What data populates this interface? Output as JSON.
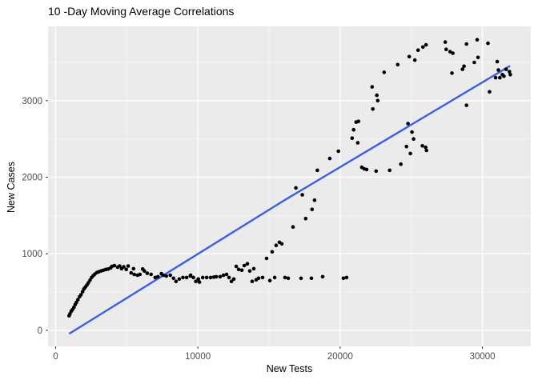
{
  "chart_data": {
    "type": "scatter",
    "title": "10 -Day Moving Average Correlations",
    "xlabel": "New Tests",
    "ylabel": "New Cases",
    "x_ticks": [
      0,
      10000,
      20000,
      30000
    ],
    "x_tick_labels": [
      "0",
      "10000",
      "20000",
      "30000"
    ],
    "y_ticks": [
      0,
      1000,
      2000,
      3000
    ],
    "y_tick_labels": [
      "0",
      "1000",
      "2000",
      "3000"
    ],
    "x_minor_ticks": [
      5000,
      15000,
      25000
    ],
    "y_minor_ticks": [
      500,
      1500,
      2500,
      3500
    ],
    "xlim": [
      -530,
      33400
    ],
    "ylim": [
      -210,
      3970
    ],
    "grid": true,
    "legend": false,
    "colors": {
      "panel_bg": "#EBEBEB",
      "grid_major": "#FFFFFF",
      "grid_minor": "#F5F5F5",
      "point": "#000000",
      "trend": "#3B5FE8",
      "tick_label": "#4D4D4D",
      "tick_mark": "#333333"
    },
    "trend_line": {
      "points": [
        [
          1000,
          -40
        ],
        [
          16000,
          1690
        ],
        [
          31900,
          3450
        ]
      ]
    },
    "points": [
      [
        950,
        190
      ],
      [
        1010,
        215
      ],
      [
        1100,
        250
      ],
      [
        1180,
        270
      ],
      [
        1290,
        300
      ],
      [
        1380,
        335
      ],
      [
        1460,
        365
      ],
      [
        1570,
        400
      ],
      [
        1690,
        440
      ],
      [
        1790,
        465
      ],
      [
        1900,
        505
      ],
      [
        1990,
        540
      ],
      [
        2100,
        565
      ],
      [
        2200,
        590
      ],
      [
        2300,
        620
      ],
      [
        2420,
        655
      ],
      [
        2530,
        690
      ],
      [
        2650,
        715
      ],
      [
        2760,
        735
      ],
      [
        2900,
        755
      ],
      [
        3030,
        765
      ],
      [
        3200,
        775
      ],
      [
        3370,
        785
      ],
      [
        3540,
        795
      ],
      [
        3700,
        800
      ],
      [
        3870,
        815
      ],
      [
        3960,
        835
      ],
      [
        4130,
        845
      ],
      [
        4360,
        825
      ],
      [
        4500,
        840
      ],
      [
        4640,
        805
      ],
      [
        4790,
        830
      ],
      [
        4970,
        795
      ],
      [
        5100,
        840
      ],
      [
        5310,
        750
      ],
      [
        5480,
        805
      ],
      [
        5530,
        730
      ],
      [
        5760,
        720
      ],
      [
        5930,
        730
      ],
      [
        6120,
        800
      ],
      [
        6240,
        775
      ],
      [
        6440,
        745
      ],
      [
        6710,
        730
      ],
      [
        7000,
        690
      ],
      [
        7190,
        700
      ],
      [
        7440,
        740
      ],
      [
        7560,
        720
      ],
      [
        7780,
        710
      ],
      [
        8060,
        720
      ],
      [
        8290,
        680
      ],
      [
        8460,
        640
      ],
      [
        8690,
        670
      ],
      [
        8950,
        690
      ],
      [
        9210,
        690
      ],
      [
        9470,
        710
      ],
      [
        9490,
        720
      ],
      [
        9690,
        690
      ],
      [
        9860,
        640
      ],
      [
        10030,
        670
      ],
      [
        10110,
        630
      ],
      [
        10340,
        690
      ],
      [
        10620,
        690
      ],
      [
        10900,
        690
      ],
      [
        11130,
        695
      ],
      [
        11300,
        700
      ],
      [
        11570,
        700
      ],
      [
        11800,
        720
      ],
      [
        12020,
        730
      ],
      [
        12190,
        690
      ],
      [
        12360,
        640
      ],
      [
        12530,
        670
      ],
      [
        12700,
        835
      ],
      [
        12870,
        795
      ],
      [
        13090,
        785
      ],
      [
        13260,
        845
      ],
      [
        13480,
        870
      ],
      [
        13650,
        775
      ],
      [
        13820,
        640
      ],
      [
        13930,
        805
      ],
      [
        14100,
        660
      ],
      [
        14270,
        680
      ],
      [
        14550,
        690
      ],
      [
        14830,
        940
      ],
      [
        15060,
        650
      ],
      [
        15220,
        1025
      ],
      [
        15400,
        690
      ],
      [
        15500,
        1110
      ],
      [
        15730,
        1150
      ],
      [
        15900,
        1130
      ],
      [
        16120,
        690
      ],
      [
        16350,
        680
      ],
      [
        16690,
        1350
      ],
      [
        16890,
        1860
      ],
      [
        17250,
        680
      ],
      [
        17340,
        1770
      ],
      [
        17580,
        1460
      ],
      [
        17980,
        680
      ],
      [
        18030,
        1580
      ],
      [
        18200,
        1700
      ],
      [
        18400,
        2090
      ],
      [
        18770,
        700
      ],
      [
        19270,
        2245
      ],
      [
        19880,
        2340
      ],
      [
        20230,
        680
      ],
      [
        20450,
        690
      ],
      [
        20840,
        2510
      ],
      [
        20950,
        2620
      ],
      [
        21120,
        2720
      ],
      [
        21240,
        2450
      ],
      [
        21290,
        2730
      ],
      [
        21520,
        2130
      ],
      [
        21690,
        2110
      ],
      [
        21860,
        2100
      ],
      [
        22250,
        3180
      ],
      [
        22300,
        2890
      ],
      [
        22530,
        2080
      ],
      [
        22580,
        3070
      ],
      [
        22640,
        3000
      ],
      [
        23090,
        3370
      ],
      [
        23480,
        2090
      ],
      [
        24050,
        3470
      ],
      [
        24270,
        2170
      ],
      [
        24660,
        2400
      ],
      [
        24770,
        2700
      ],
      [
        24860,
        3575
      ],
      [
        24940,
        2310
      ],
      [
        25050,
        2590
      ],
      [
        25160,
        2500
      ],
      [
        25250,
        3530
      ],
      [
        25480,
        3660
      ],
      [
        25780,
        2410
      ],
      [
        25820,
        3700
      ],
      [
        26010,
        2390
      ],
      [
        26040,
        3730
      ],
      [
        26070,
        2350
      ],
      [
        27390,
        3765
      ],
      [
        27450,
        3670
      ],
      [
        27730,
        3640
      ],
      [
        27860,
        3360
      ],
      [
        27920,
        3620
      ],
      [
        28600,
        3410
      ],
      [
        28710,
        3450
      ],
      [
        28880,
        2940
      ],
      [
        28880,
        3740
      ],
      [
        29430,
        3500
      ],
      [
        29630,
        3795
      ],
      [
        29690,
        3565
      ],
      [
        30390,
        3750
      ],
      [
        30500,
        3115
      ],
      [
        30930,
        3300
      ],
      [
        31040,
        3510
      ],
      [
        31120,
        3400
      ],
      [
        31230,
        3300
      ],
      [
        31400,
        3340
      ],
      [
        31510,
        3320
      ],
      [
        31660,
        3410
      ],
      [
        31900,
        3380
      ],
      [
        31960,
        3340
      ]
    ]
  }
}
